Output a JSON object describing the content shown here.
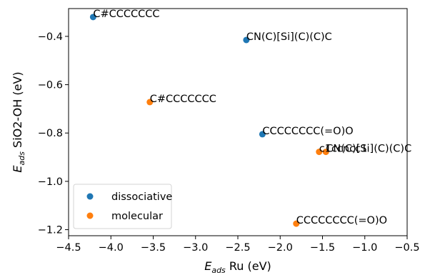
{
  "chart_data": {
    "type": "scatter",
    "xlabel": {
      "main": "E",
      "sub": "ads",
      "rest": " Ru (eV)"
    },
    "ylabel": {
      "main": "E",
      "sub": "ads",
      "rest": " SiO2-OH (eV)"
    },
    "xlim": [
      -4.5,
      -0.5
    ],
    "ylim": [
      -1.225,
      -0.285
    ],
    "x_ticks": [
      -4.5,
      -4.0,
      -3.5,
      -3.0,
      -2.5,
      -2.0,
      -1.5,
      -1.0,
      -0.5
    ],
    "x_tick_labels": [
      "−4.5",
      "−4.0",
      "−3.5",
      "−3.0",
      "−2.5",
      "−2.0",
      "−1.5",
      "−1.0",
      "−0.5"
    ],
    "y_ticks": [
      -0.4,
      -0.6,
      -0.8,
      -1.0,
      -1.2
    ],
    "y_tick_labels": [
      "−0.4",
      "−0.6",
      "−0.8",
      "−1.0",
      "−1.2"
    ],
    "legend_position": "lower-left",
    "series": [
      {
        "name": "dissociative",
        "color": "#1f77b4",
        "points": [
          {
            "x": -4.21,
            "y": -0.32,
            "label": "C#CCCCCCC"
          },
          {
            "x": -2.4,
            "y": -0.415,
            "label": "CN(C)[Si](C)(C)C"
          },
          {
            "x": -2.21,
            "y": -0.805,
            "label": "CCCCCCCC(=O)O"
          }
        ]
      },
      {
        "name": "molecular",
        "color": "#ff7f0e",
        "points": [
          {
            "x": -3.54,
            "y": -0.672,
            "label": "C#CCCCCCC"
          },
          {
            "x": -1.54,
            "y": -0.878,
            "label": "c1ccncc1"
          },
          {
            "x": -1.46,
            "y": -0.878,
            "label": "CN(C)[Si](C)(C)C"
          },
          {
            "x": -1.81,
            "y": -1.175,
            "label": "CCCCCCCC(=O)O"
          }
        ]
      }
    ]
  }
}
